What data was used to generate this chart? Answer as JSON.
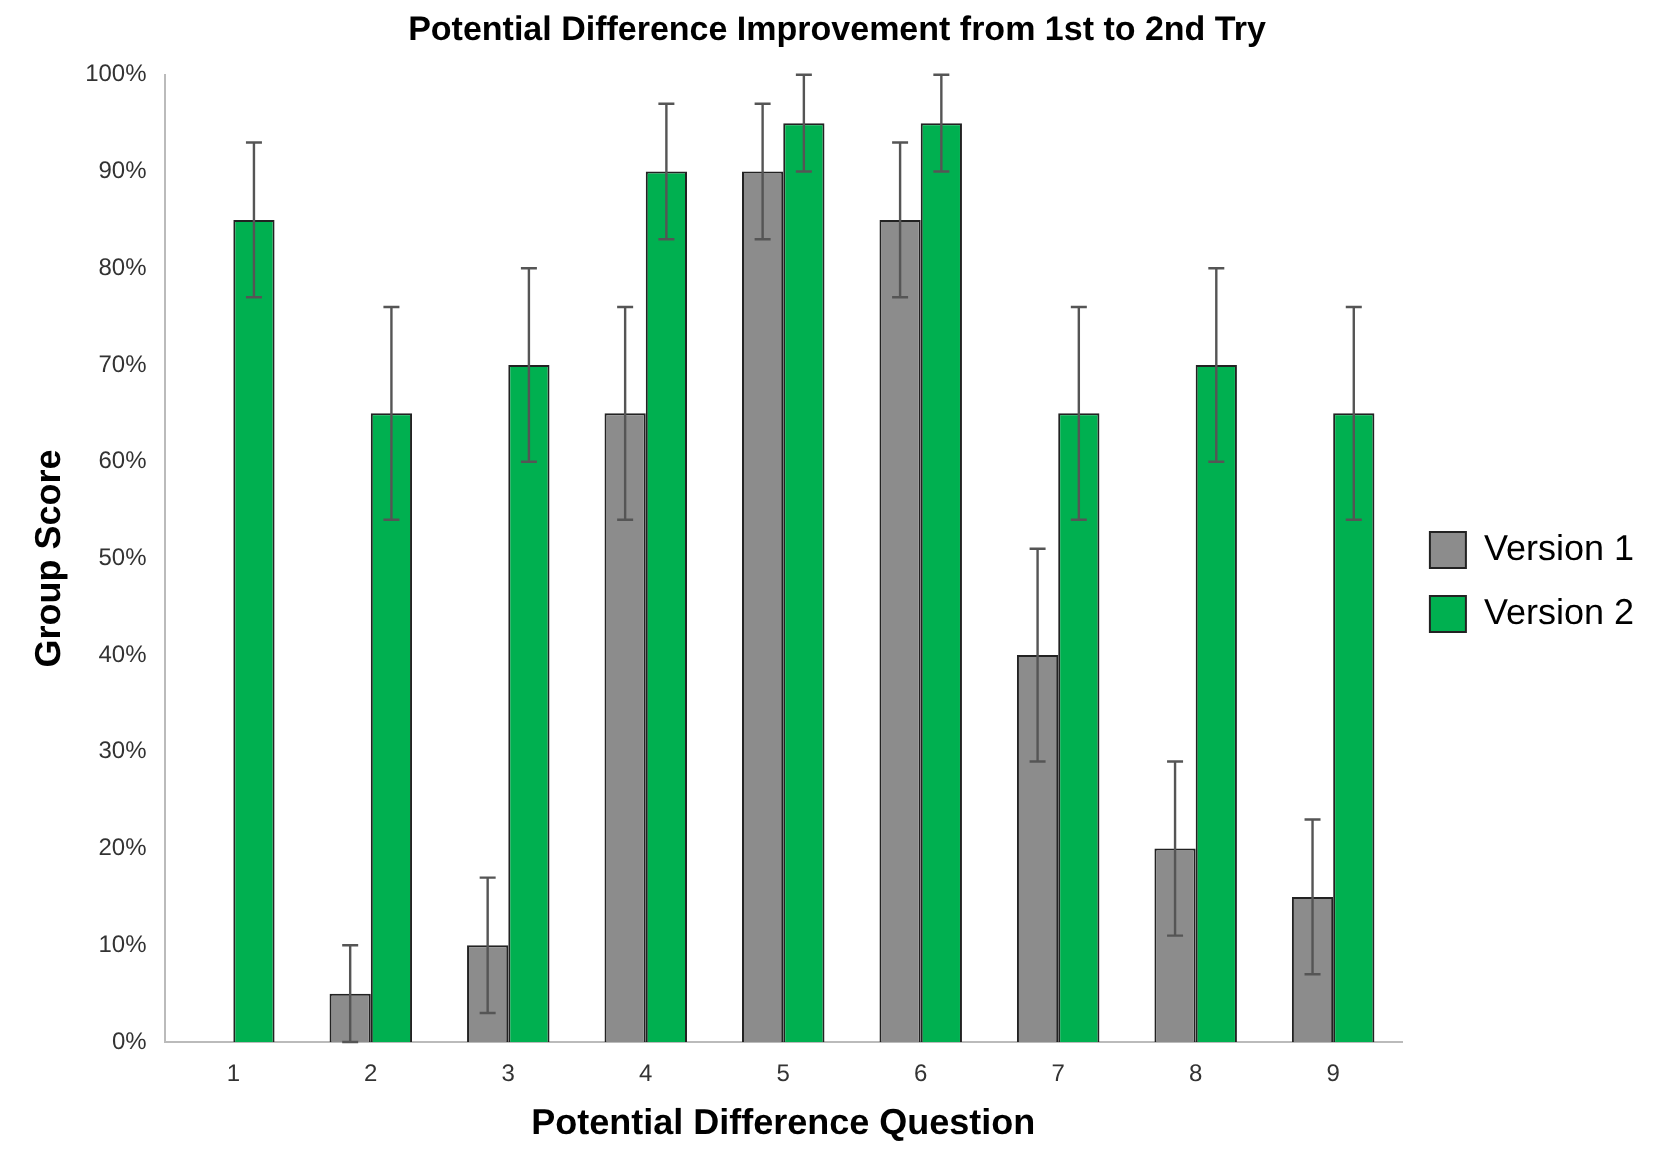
{
  "chart_data": {
    "type": "bar",
    "title": "Potential Difference Improvement from 1st to 2nd Try",
    "xlabel": "Potential Difference Question",
    "ylabel": "Group Score",
    "categories": [
      "1",
      "2",
      "3",
      "4",
      "5",
      "6",
      "7",
      "8",
      "9"
    ],
    "series": [
      {
        "name": "Version 1",
        "color": "#8c8c8c",
        "values": [
          0,
          5,
          10,
          65,
          90,
          85,
          40,
          20,
          15
        ],
        "errors": [
          null,
          5,
          7,
          11,
          7,
          8,
          11,
          9,
          8
        ]
      },
      {
        "name": "Version 2",
        "color": "#00b050",
        "values": [
          85,
          65,
          70,
          90,
          95,
          95,
          65,
          70,
          65
        ],
        "errors": [
          8,
          11,
          10,
          7,
          5,
          5,
          11,
          10,
          11
        ]
      }
    ],
    "ylim": [
      0,
      100
    ],
    "yticks": [
      {
        "value": 0,
        "label": "0%"
      },
      {
        "value": 10,
        "label": "10%"
      },
      {
        "value": 20,
        "label": "20%"
      },
      {
        "value": 30,
        "label": "30%"
      },
      {
        "value": 40,
        "label": "40%"
      },
      {
        "value": 50,
        "label": "50%"
      },
      {
        "value": 60,
        "label": "60%"
      },
      {
        "value": 70,
        "label": "70%"
      },
      {
        "value": 80,
        "label": "80%"
      },
      {
        "value": 90,
        "label": "90%"
      },
      {
        "value": 100,
        "label": "100%"
      }
    ],
    "grid": false,
    "legend": "right"
  }
}
